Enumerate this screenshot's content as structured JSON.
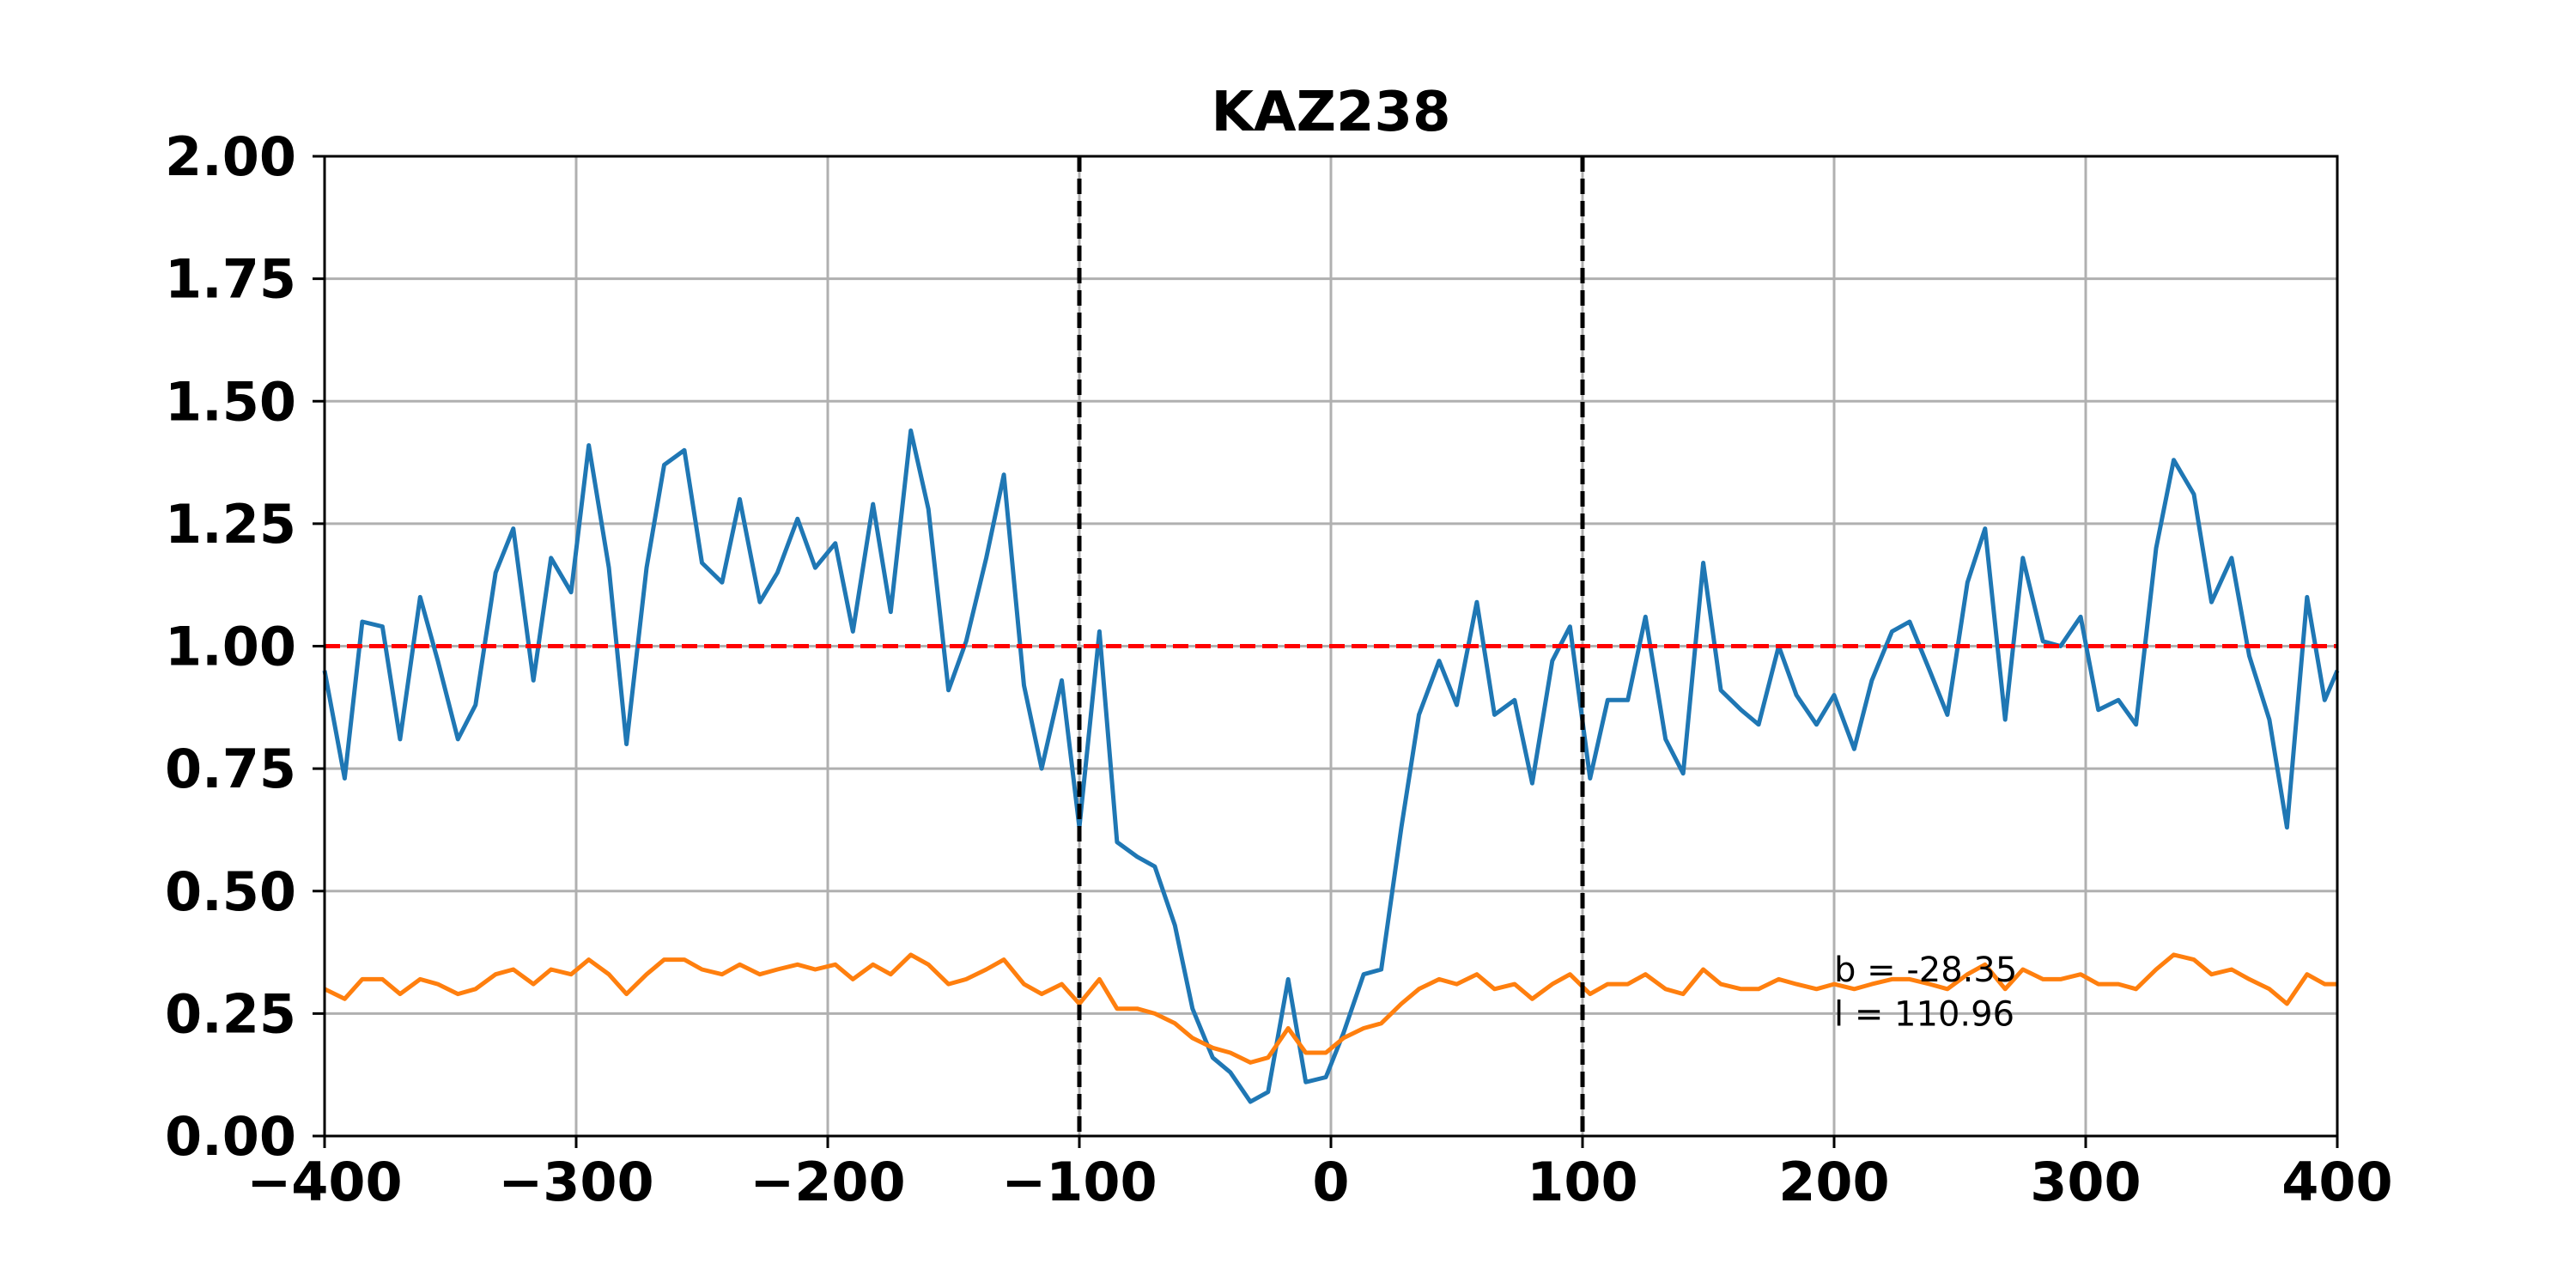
{
  "chart_data": {
    "type": "line",
    "title": "KAZ238",
    "xlabel": "",
    "ylabel": "",
    "xlim": [
      -400,
      400
    ],
    "ylim": [
      0,
      2
    ],
    "x_ticks": [
      "−400",
      "−300",
      "−200",
      "−100",
      "0",
      "100",
      "200",
      "300",
      "400"
    ],
    "x_tick_values": [
      -400,
      -300,
      -200,
      -100,
      0,
      100,
      200,
      300,
      400
    ],
    "y_ticks": [
      "0.00",
      "0.25",
      "0.50",
      "0.75",
      "1.00",
      "1.25",
      "1.50",
      "1.75",
      "2.00"
    ],
    "y_tick_values": [
      0,
      0.25,
      0.5,
      0.75,
      1.0,
      1.25,
      1.5,
      1.75,
      2.0
    ],
    "grid": true,
    "legend": "none",
    "reference_lines": [
      {
        "orientation": "horizontal",
        "value": 1.0,
        "style": "dashed",
        "color": "#ff0000"
      },
      {
        "orientation": "vertical",
        "value": -100,
        "style": "dashed",
        "color": "#000000"
      },
      {
        "orientation": "vertical",
        "value": 100,
        "style": "dashed",
        "color": "#000000"
      }
    ],
    "annotations": [
      {
        "text": "b = -28.35",
        "x": 200,
        "y": 0.34
      },
      {
        "text": "l = 110.96",
        "x": 200,
        "y": 0.25
      }
    ],
    "series": [
      {
        "color": "#1f77b4",
        "x": [
          -400,
          -392,
          -385,
          -377,
          -370,
          -362,
          -355,
          -347,
          -340,
          -332,
          -325,
          -317,
          -310,
          -302,
          -295,
          -287,
          -280,
          -272,
          -265,
          -257,
          -250,
          -242,
          -235,
          -227,
          -220,
          -212,
          -205,
          -197,
          -190,
          -182,
          -175,
          -167,
          -160,
          -152,
          -145,
          -137,
          -130,
          -122,
          -115,
          -107,
          -100,
          -92,
          -85,
          -77,
          -70,
          -62,
          -55,
          -47,
          -40,
          -32,
          -25,
          -17,
          -10,
          -2,
          5,
          13,
          20,
          28,
          35,
          43,
          50,
          58,
          65,
          73,
          80,
          88,
          95,
          103,
          110,
          118,
          125,
          133,
          140,
          148,
          155,
          163,
          170,
          178,
          185,
          193,
          200,
          208,
          215,
          223,
          230,
          238,
          245,
          253,
          260,
          268,
          275,
          283,
          290,
          298,
          305,
          313,
          320,
          328,
          335,
          343,
          350,
          358,
          365,
          373,
          380,
          388,
          395,
          400
        ],
        "y": [
          0.95,
          0.73,
          1.05,
          1.04,
          0.81,
          1.1,
          0.97,
          0.81,
          0.88,
          1.15,
          1.24,
          0.93,
          1.18,
          1.11,
          1.41,
          1.16,
          0.8,
          1.16,
          1.37,
          1.4,
          1.17,
          1.13,
          1.3,
          1.09,
          1.15,
          1.26,
          1.16,
          1.21,
          1.03,
          1.29,
          1.07,
          1.44,
          1.28,
          0.91,
          1.01,
          1.18,
          1.35,
          0.92,
          0.75,
          0.93,
          0.63,
          1.03,
          0.6,
          0.57,
          0.55,
          0.43,
          0.26,
          0.16,
          0.13,
          0.07,
          0.09,
          0.32,
          0.11,
          0.12,
          0.21,
          0.33,
          0.34,
          0.63,
          0.86,
          0.97,
          0.88,
          1.09,
          0.86,
          0.89,
          0.72,
          0.97,
          1.04,
          0.73,
          0.89,
          0.89,
          1.06,
          0.81,
          0.74,
          1.17,
          0.91,
          0.87,
          0.84,
          1.0,
          0.9,
          0.84,
          0.9,
          0.79,
          0.93,
          1.03,
          1.05,
          0.95,
          0.86,
          1.13,
          1.24,
          0.85,
          1.18,
          1.01,
          1.0,
          1.06,
          0.87,
          0.89,
          0.84,
          1.2,
          1.38,
          1.31,
          1.09,
          1.18,
          0.98,
          0.85,
          0.63,
          1.1,
          0.89,
          0.95
        ]
      },
      {
        "color": "#ff7f0e",
        "x": [
          -400,
          -392,
          -385,
          -377,
          -370,
          -362,
          -355,
          -347,
          -340,
          -332,
          -325,
          -317,
          -310,
          -302,
          -295,
          -287,
          -280,
          -272,
          -265,
          -257,
          -250,
          -242,
          -235,
          -227,
          -220,
          -212,
          -205,
          -197,
          -190,
          -182,
          -175,
          -167,
          -160,
          -152,
          -145,
          -137,
          -130,
          -122,
          -115,
          -107,
          -100,
          -92,
          -85,
          -77,
          -70,
          -62,
          -55,
          -47,
          -40,
          -32,
          -25,
          -17,
          -10,
          -2,
          5,
          13,
          20,
          28,
          35,
          43,
          50,
          58,
          65,
          73,
          80,
          88,
          95,
          103,
          110,
          118,
          125,
          133,
          140,
          148,
          155,
          163,
          170,
          178,
          185,
          193,
          200,
          208,
          215,
          223,
          230,
          238,
          245,
          253,
          260,
          268,
          275,
          283,
          290,
          298,
          305,
          313,
          320,
          328,
          335,
          343,
          350,
          358,
          365,
          373,
          380,
          388,
          395,
          400
        ],
        "y": [
          0.3,
          0.28,
          0.32,
          0.32,
          0.29,
          0.32,
          0.31,
          0.29,
          0.3,
          0.33,
          0.34,
          0.31,
          0.34,
          0.33,
          0.36,
          0.33,
          0.29,
          0.33,
          0.36,
          0.36,
          0.34,
          0.33,
          0.35,
          0.33,
          0.34,
          0.35,
          0.34,
          0.35,
          0.32,
          0.35,
          0.33,
          0.37,
          0.35,
          0.31,
          0.32,
          0.34,
          0.36,
          0.31,
          0.29,
          0.31,
          0.27,
          0.32,
          0.26,
          0.26,
          0.25,
          0.23,
          0.2,
          0.18,
          0.17,
          0.15,
          0.16,
          0.22,
          0.17,
          0.17,
          0.2,
          0.22,
          0.23,
          0.27,
          0.3,
          0.32,
          0.31,
          0.33,
          0.3,
          0.31,
          0.28,
          0.31,
          0.33,
          0.29,
          0.31,
          0.31,
          0.33,
          0.3,
          0.29,
          0.34,
          0.31,
          0.3,
          0.3,
          0.32,
          0.31,
          0.3,
          0.31,
          0.3,
          0.31,
          0.32,
          0.32,
          0.31,
          0.3,
          0.33,
          0.35,
          0.3,
          0.34,
          0.32,
          0.32,
          0.33,
          0.31,
          0.31,
          0.3,
          0.34,
          0.37,
          0.36,
          0.33,
          0.34,
          0.32,
          0.3,
          0.27,
          0.33,
          0.31,
          0.31
        ]
      }
    ]
  }
}
